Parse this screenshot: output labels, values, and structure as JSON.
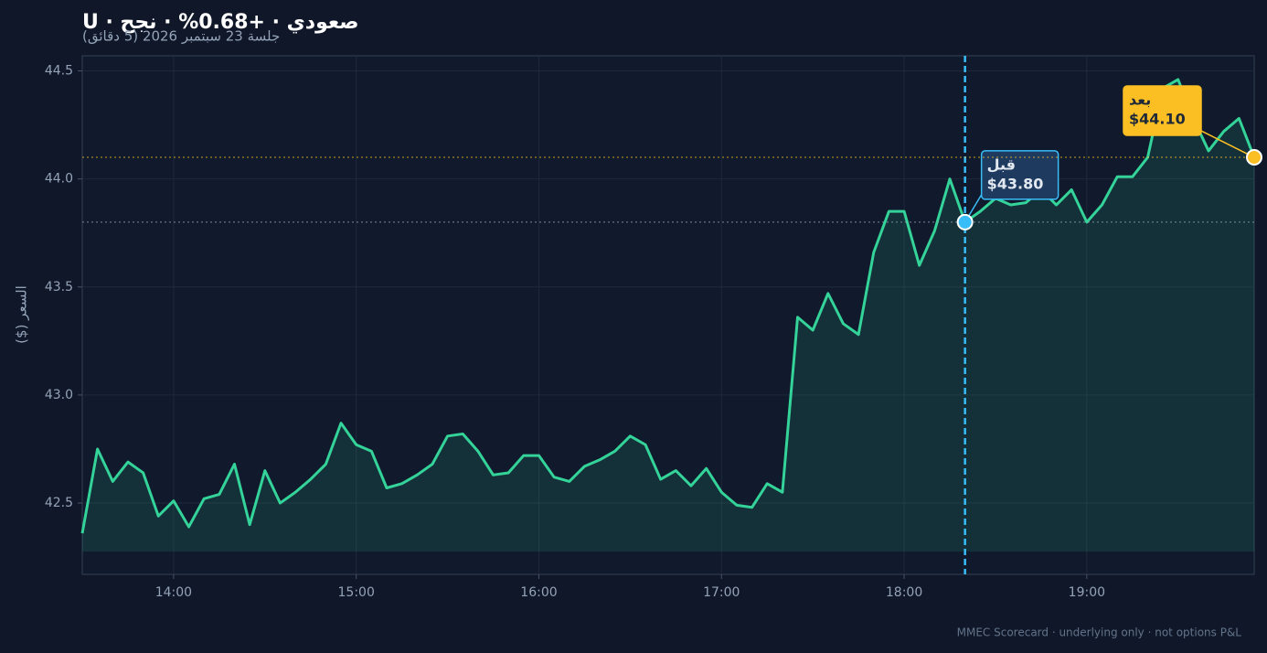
{
  "chart_data": {
    "type": "line",
    "title": "صعودي · +0.68% · نجح · U",
    "subtitle": "جلسة 23 سبتمبر 2026 (5 دقائق)",
    "y_label": "السعر ($)",
    "footer": "MMEC Scorecard · underlying only · not options P&L",
    "x": [
      "13:30",
      "13:35",
      "13:40",
      "13:45",
      "13:50",
      "13:55",
      "14:00",
      "14:05",
      "14:10",
      "14:15",
      "14:20",
      "14:25",
      "14:30",
      "14:35",
      "14:40",
      "14:45",
      "14:50",
      "14:55",
      "15:00",
      "15:05",
      "15:10",
      "15:15",
      "15:20",
      "15:25",
      "15:30",
      "15:35",
      "15:40",
      "15:45",
      "15:50",
      "15:55",
      "16:00",
      "16:05",
      "16:10",
      "16:15",
      "16:20",
      "16:25",
      "16:30",
      "16:35",
      "16:40",
      "16:45",
      "16:50",
      "16:55",
      "17:00",
      "17:05",
      "17:10",
      "17:15",
      "17:20",
      "17:25",
      "17:30",
      "17:35",
      "17:40",
      "17:45",
      "17:50",
      "17:55",
      "18:00",
      "18:05",
      "18:10",
      "18:15",
      "18:20",
      "18:25",
      "18:30",
      "18:35",
      "18:40",
      "18:45",
      "18:50",
      "18:55",
      "19:00",
      "19:05",
      "19:10",
      "19:15",
      "19:20",
      "19:25",
      "19:30",
      "19:35",
      "19:40",
      "19:45",
      "19:50",
      "19:55"
    ],
    "series": [
      {
        "name": "U",
        "color": "#34d399",
        "values": [
          42.36,
          42.75,
          42.6,
          42.69,
          42.64,
          42.44,
          42.51,
          42.39,
          42.52,
          42.54,
          42.68,
          42.4,
          42.65,
          42.5,
          42.55,
          42.61,
          42.68,
          42.87,
          42.77,
          42.74,
          42.57,
          42.59,
          42.63,
          42.68,
          42.81,
          42.82,
          42.74,
          42.63,
          42.64,
          42.72,
          42.72,
          42.62,
          42.6,
          42.67,
          42.7,
          42.74,
          42.81,
          42.77,
          42.61,
          42.65,
          42.58,
          42.66,
          42.55,
          42.49,
          42.48,
          42.59,
          42.55,
          43.36,
          43.3,
          43.47,
          43.33,
          43.28,
          43.66,
          43.85,
          43.85,
          43.6,
          43.76,
          44.0,
          43.8,
          43.85,
          43.91,
          43.88,
          43.89,
          43.95,
          43.88,
          43.95,
          43.8,
          43.88,
          44.01,
          44.01,
          44.1,
          44.42,
          44.46,
          44.28,
          44.13,
          44.22,
          44.28,
          44.1
        ]
      }
    ],
    "xlim": [
      "13:30",
      "19:55"
    ],
    "xticks": [
      "14:00",
      "15:00",
      "16:00",
      "17:00",
      "18:00",
      "19:00"
    ],
    "ylim": [
      42.17,
      44.57
    ],
    "yticks": [
      42.5,
      {
        "value": 43,
        "label": "43.0"
      },
      43.5,
      {
        "value": 44,
        "label": "44.0"
      },
      44.5
    ],
    "grid": true,
    "annotations": [
      {
        "text": "قبل",
        "price_label": "$43.80",
        "x": "18:20",
        "y": 43.8,
        "color": "#38bdf8"
      },
      {
        "text": "بعد",
        "price_label": "$44.10",
        "x": "19:55",
        "y": 44.1,
        "color": "#fbbf24"
      }
    ]
  }
}
